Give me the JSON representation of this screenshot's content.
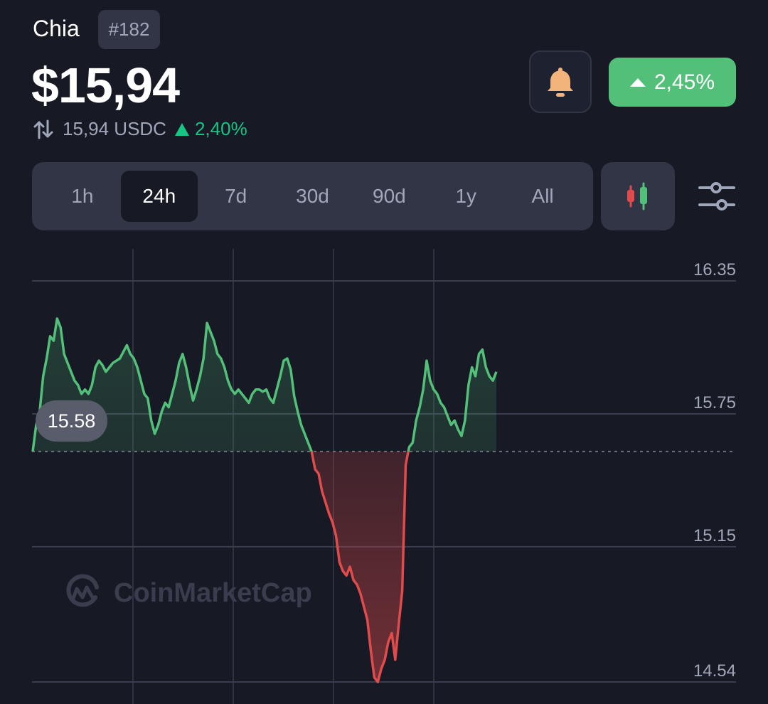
{
  "coin": {
    "name": "Chia",
    "rank": "#182",
    "price": "$15,94",
    "quote_price": "15,94 USDC",
    "quote_change": "2,40%",
    "change_24h": "2,45%"
  },
  "time_ranges": [
    {
      "label": "1h",
      "active": false
    },
    {
      "label": "24h",
      "active": true
    },
    {
      "label": "7d",
      "active": false
    },
    {
      "label": "30d",
      "active": false
    },
    {
      "label": "90d",
      "active": false
    },
    {
      "label": "1y",
      "active": false
    },
    {
      "label": "All",
      "active": false
    }
  ],
  "icons": {
    "bell": "bell-icon",
    "candle": "candlestick-icon",
    "settings": "sliders-icon",
    "swap": "swap-arrows-icon"
  },
  "colors": {
    "up": "#52c079",
    "down": "#e04b4b",
    "background": "#171924",
    "panel": "#323546",
    "bell": "#f2b47a"
  },
  "watermark": "CoinMarketCap",
  "chart_data": {
    "type": "line",
    "y_ticks": [
      "16.35",
      "15.75",
      "15.15",
      "14.54"
    ],
    "ylim": [
      14.54,
      16.35
    ],
    "baseline_label": "15.58",
    "baseline": 15.58,
    "grid": true,
    "series": [
      {
        "values": [
          15.58,
          15.7,
          15.76,
          15.92,
          16.0,
          16.1,
          16.08,
          16.18,
          16.14,
          16.02,
          15.98,
          15.94,
          15.9,
          15.88,
          15.84,
          15.86,
          15.84,
          15.88,
          15.96,
          15.99,
          15.97,
          15.94,
          15.96,
          15.98,
          15.99,
          16.0,
          16.03,
          16.06,
          16.02,
          16.0,
          15.96,
          15.9,
          15.84,
          15.82,
          15.72,
          15.66,
          15.7,
          15.76,
          15.8,
          15.78,
          15.84,
          15.9,
          15.98,
          16.02,
          15.96,
          15.88,
          15.81,
          15.86,
          15.92,
          16.0,
          16.16,
          16.12,
          16.08,
          16.02,
          16.0,
          15.96,
          15.9,
          15.86,
          15.84,
          15.86,
          15.84,
          15.82,
          15.8,
          15.84,
          15.86,
          15.86,
          15.85,
          15.86,
          15.82,
          15.8,
          15.86,
          15.92,
          15.99,
          16.0,
          15.95,
          15.83,
          15.76,
          15.7,
          15.66,
          15.62,
          15.58,
          15.5,
          15.48,
          15.4,
          15.35,
          15.3,
          15.26,
          15.2,
          15.08,
          15.04,
          15.02,
          15.06,
          15.0,
          14.98,
          14.94,
          14.88,
          14.82,
          14.68,
          14.56,
          14.54,
          14.6,
          14.64,
          14.72,
          14.76,
          14.64,
          14.8,
          14.95,
          15.52,
          15.6,
          15.62,
          15.72,
          15.78,
          15.86,
          15.99,
          15.9,
          15.86,
          15.84,
          15.8,
          15.78,
          15.74,
          15.7,
          15.72,
          15.68,
          15.65,
          15.72,
          15.88,
          15.96,
          15.92,
          16.02,
          16.04,
          15.96,
          15.92,
          15.9,
          15.94
        ]
      }
    ]
  }
}
